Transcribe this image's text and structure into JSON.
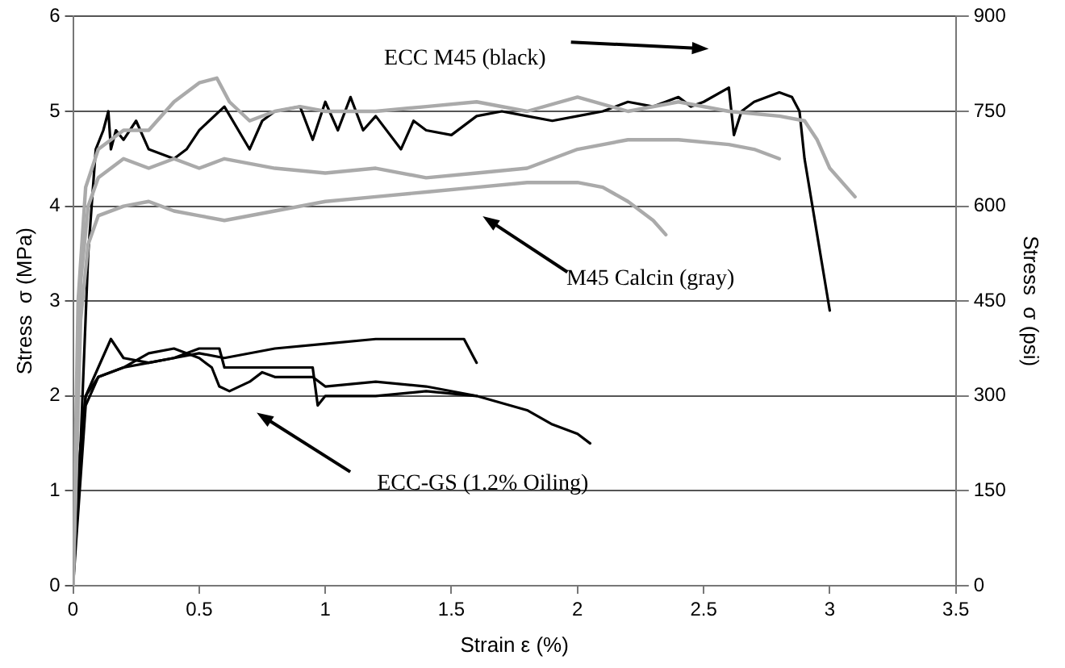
{
  "chart_data": {
    "type": "line",
    "xlabel": "Strain ε (%)",
    "ylabel": "Stress  σ (MPa)",
    "y2label": "Stress  σ (psi)",
    "xlim": [
      0,
      3.5
    ],
    "xticks": [
      0,
      0.5,
      1,
      1.5,
      2,
      2.5,
      3,
      3.5
    ],
    "ylim": [
      0,
      6
    ],
    "yticks": [
      0,
      1,
      2,
      3,
      4,
      5,
      6
    ],
    "y2lim": [
      0,
      900
    ],
    "y2ticks": [
      0,
      150,
      300,
      450,
      600,
      750,
      900
    ],
    "grid": "y",
    "legend": false,
    "marker": "none",
    "line_style": "solid",
    "series": [
      {
        "color": "#aaaaaa",
        "x": [
          0,
          0.02,
          0.05,
          0.1,
          0.2,
          0.3,
          0.4,
          0.5,
          0.57,
          0.62,
          0.7,
          0.8,
          0.9,
          1.0,
          1.2,
          1.4,
          1.6,
          1.8,
          2.0,
          2.2,
          2.4,
          2.6,
          2.8,
          2.9,
          2.95,
          3.0,
          3.1
        ],
        "values": [
          0,
          3,
          4.2,
          4.6,
          4.8,
          4.8,
          5.1,
          5.3,
          5.35,
          5.1,
          4.9,
          5.0,
          5.05,
          5.0,
          5.0,
          5.05,
          5.1,
          5.0,
          5.15,
          5.0,
          5.1,
          5.0,
          4.95,
          4.9,
          4.7,
          4.4,
          4.1
        ]
      },
      {
        "color": "#aaaaaa",
        "x": [
          0,
          0.03,
          0.06,
          0.1,
          0.2,
          0.3,
          0.4,
          0.5,
          0.6,
          0.8,
          1.0,
          1.2,
          1.4,
          1.6,
          1.8,
          2.0,
          2.2,
          2.4,
          2.6,
          2.7,
          2.8
        ],
        "values": [
          0,
          3.2,
          4.0,
          4.3,
          4.5,
          4.4,
          4.5,
          4.4,
          4.5,
          4.4,
          4.35,
          4.4,
          4.3,
          4.35,
          4.4,
          4.6,
          4.7,
          4.7,
          4.65,
          4.6,
          4.5
        ]
      },
      {
        "color": "#aaaaaa",
        "x": [
          0,
          0.03,
          0.06,
          0.1,
          0.2,
          0.3,
          0.4,
          0.5,
          0.6,
          0.8,
          1.0,
          1.2,
          1.4,
          1.6,
          1.8,
          2.0,
          2.1,
          2.2,
          2.3,
          2.35
        ],
        "values": [
          0,
          2.8,
          3.6,
          3.9,
          4.0,
          4.05,
          3.95,
          3.9,
          3.85,
          3.95,
          4.05,
          4.1,
          4.15,
          4.2,
          4.25,
          4.25,
          4.2,
          4.05,
          3.85,
          3.7
        ]
      },
      {
        "color": "#000000",
        "x": [
          0,
          0.03,
          0.06,
          0.09,
          0.12,
          0.14,
          0.15,
          0.17,
          0.2,
          0.25,
          0.3,
          0.4,
          0.45,
          0.5,
          0.6,
          0.7,
          0.75,
          0.8,
          0.9,
          0.95,
          1.0,
          1.05,
          1.1,
          1.15,
          1.2,
          1.3,
          1.35,
          1.4,
          1.5,
          1.6,
          1.7,
          1.8,
          1.9,
          2.0,
          2.1,
          2.2,
          2.3,
          2.4,
          2.45,
          2.5,
          2.6,
          2.62,
          2.65,
          2.7,
          2.8,
          2.85,
          2.88,
          2.9,
          2.95,
          3.0
        ],
        "values": [
          0,
          1.5,
          3.5,
          4.6,
          4.8,
          5.0,
          4.6,
          4.8,
          4.7,
          4.9,
          4.6,
          4.5,
          4.6,
          4.8,
          5.05,
          4.6,
          4.9,
          5.0,
          5.05,
          4.7,
          5.1,
          4.8,
          5.15,
          4.8,
          4.95,
          4.6,
          4.9,
          4.8,
          4.75,
          4.95,
          5.0,
          4.95,
          4.9,
          4.95,
          5.0,
          5.1,
          5.05,
          5.15,
          5.05,
          5.1,
          5.25,
          4.75,
          5.0,
          5.1,
          5.2,
          5.15,
          5.0,
          4.5,
          3.7,
          2.9
        ]
      },
      {
        "color": "#000000",
        "x": [
          0,
          0.02,
          0.05,
          0.1,
          0.15,
          0.2,
          0.3,
          0.4,
          0.5,
          0.6,
          0.8,
          1.0,
          1.2,
          1.4,
          1.5,
          1.55,
          1.58,
          1.6
        ],
        "values": [
          0,
          1.2,
          2.0,
          2.3,
          2.6,
          2.4,
          2.35,
          2.4,
          2.45,
          2.4,
          2.5,
          2.55,
          2.6,
          2.6,
          2.6,
          2.6,
          2.45,
          2.35
        ]
      },
      {
        "color": "#000000",
        "x": [
          0,
          0.02,
          0.05,
          0.1,
          0.2,
          0.3,
          0.4,
          0.5,
          0.55,
          0.58,
          0.62,
          0.7,
          0.75,
          0.8,
          0.9,
          0.95,
          1.0,
          1.2,
          1.4,
          1.6,
          1.8,
          1.9,
          2.0,
          2.05
        ],
        "values": [
          0,
          1.2,
          2.0,
          2.2,
          2.3,
          2.45,
          2.5,
          2.4,
          2.3,
          2.1,
          2.05,
          2.15,
          2.25,
          2.2,
          2.2,
          2.2,
          2.1,
          2.15,
          2.1,
          2.0,
          1.85,
          1.7,
          1.6,
          1.5
        ]
      },
      {
        "color": "#000000",
        "x": [
          0,
          0.05,
          0.1,
          0.2,
          0.3,
          0.4,
          0.5,
          0.58,
          0.6,
          0.8,
          0.95,
          0.97,
          1.0,
          1.2,
          1.4,
          1.6
        ],
        "values": [
          0,
          1.9,
          2.2,
          2.3,
          2.35,
          2.4,
          2.5,
          2.5,
          2.3,
          2.3,
          2.3,
          1.9,
          2.0,
          2.0,
          2.05,
          2.0
        ]
      }
    ],
    "annotations": [
      "ECC M45 (black)",
      "M45 Calcin (gray)",
      "ECC-GS (1.2% Oiling)"
    ]
  }
}
